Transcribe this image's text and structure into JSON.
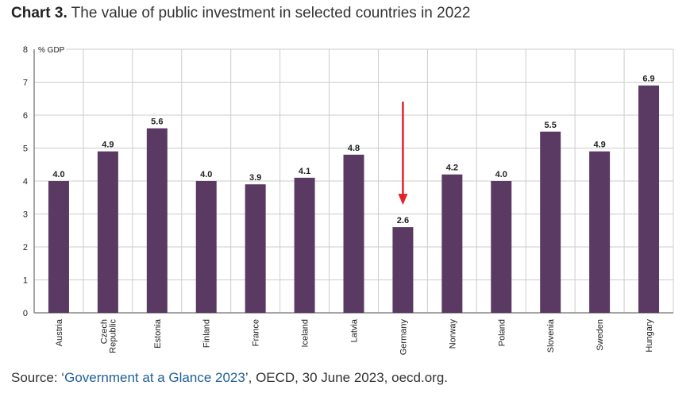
{
  "title": {
    "prefix": "Chart 3.",
    "text": " The value of public investment in selected countries in 2022"
  },
  "source": {
    "label": "Source: ‘",
    "link": "Government at a Glance 2023",
    "rest": "’, OECD, 30 June 2023, oecd.org."
  },
  "chart_data": {
    "type": "bar",
    "title": "",
    "ylabel": "% GDP",
    "ylim": [
      0,
      8
    ],
    "yticks": [
      0,
      1,
      2,
      3,
      4,
      5,
      6,
      7,
      8
    ],
    "grid": true,
    "categories": [
      "Austria",
      "Czech Republic",
      "Estonia",
      "Finland",
      "France",
      "Iceland",
      "Latvia",
      "Germany",
      "Norway",
      "Poland",
      "Slovenia",
      "Sweden",
      "Hungary"
    ],
    "values": [
      4.0,
      4.9,
      5.6,
      4.0,
      3.9,
      4.1,
      4.8,
      2.6,
      4.2,
      4.0,
      5.5,
      4.9,
      6.9
    ],
    "bar_color": "#5a3a63",
    "annotation": {
      "type": "arrow",
      "target": "Germany",
      "color": "#e0242a"
    }
  }
}
